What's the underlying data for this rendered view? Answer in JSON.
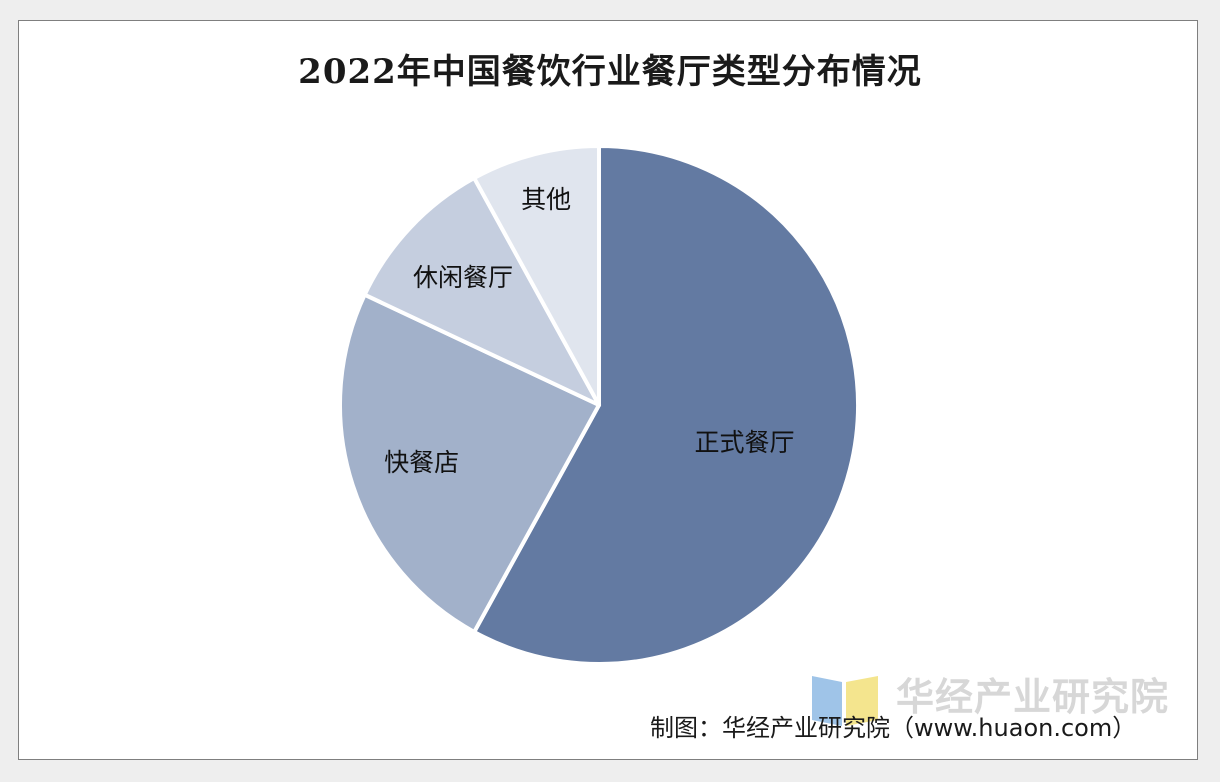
{
  "chart_data": {
    "type": "pie",
    "title": "2022年中国餐饮行业餐厅类型分布情况",
    "slices": [
      {
        "label": "正式餐厅",
        "value": 58,
        "color": "#637aa2"
      },
      {
        "label": "快餐店",
        "value": 24,
        "color": "#a2b1ca"
      },
      {
        "label": "休闲餐厅",
        "value": 10,
        "color": "#c5cedf"
      },
      {
        "label": "其他",
        "value": 8,
        "color": "#e0e5ee"
      }
    ],
    "legend": "none",
    "source": "制图：华经产业研究院（www.huaon.com）"
  },
  "watermark": {
    "text": "华经产业研究院",
    "logo_colors": [
      "#9fc4e8",
      "#f4e58e"
    ]
  }
}
